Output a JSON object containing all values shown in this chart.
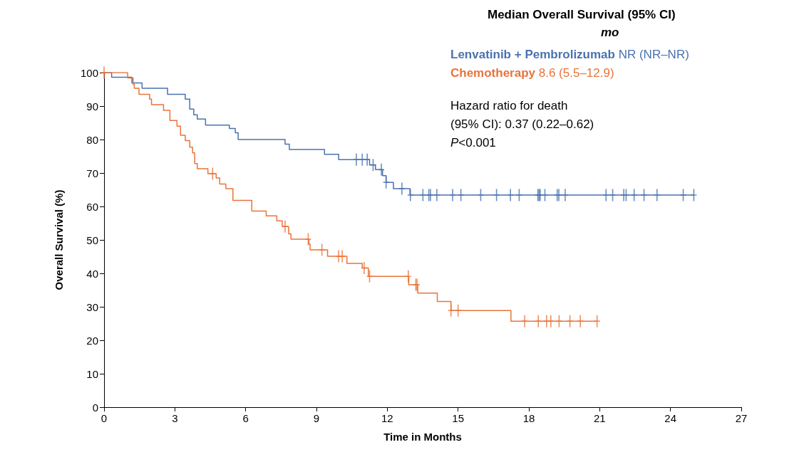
{
  "chart_data": {
    "type": "step",
    "xlabel": "Time in Months",
    "ylabel": "Overall Survival (%)",
    "legend_title": "Median Overall Survival (95% CI)",
    "annotations": [
      "mo",
      "NR (NR–NR)",
      "8.6 (5.5–12.9)",
      "Hazard ratio for death",
      "(95% CI): 0.37 (0.22–0.62)",
      "P<0.001"
    ],
    "xlim": [
      0,
      27
    ],
    "xticks": [
      0,
      3,
      6,
      9,
      12,
      15,
      18,
      21,
      24,
      27
    ],
    "ylim": [
      0,
      100
    ],
    "yticks": [
      0,
      10,
      20,
      30,
      40,
      50,
      60,
      70,
      80,
      90,
      100
    ],
    "grid": false,
    "legend": "top right",
    "series": [
      {
        "name": "Lenvatinib + Pembrolizumab",
        "color": "#4a72b0",
        "marker": "none",
        "x": [
          0,
          0.32,
          1.18,
          1.61,
          2.69,
          3.44,
          3.63,
          3.8,
          3.95,
          4.3,
          5.31,
          5.56,
          5.68,
          7.67,
          7.85,
          9.34,
          9.94,
          11.25,
          11.5,
          11.8,
          11.95,
          12.26,
          12.96,
          25.0
        ],
        "values": [
          100,
          98.6,
          96.9,
          95.3,
          93.5,
          92.1,
          89.1,
          87.4,
          86.1,
          84.3,
          83.3,
          82.0,
          80.0,
          78.6,
          77.0,
          75.6,
          74.0,
          72.4,
          71.0,
          69.2,
          67.2,
          65.3,
          63.4,
          63.4
        ]
      },
      {
        "name": "Chemotherapy",
        "color": "#e8743b",
        "marker": "none",
        "x": [
          0,
          1.0,
          1.23,
          1.28,
          1.48,
          1.93,
          2.01,
          2.52,
          2.79,
          3.09,
          3.24,
          3.44,
          3.63,
          3.75,
          3.84,
          3.95,
          4.4,
          4.75,
          4.9,
          5.16,
          5.46,
          6.26,
          6.87,
          7.32,
          7.55,
          7.82,
          7.92,
          8.68,
          8.73,
          9.47,
          10.29,
          10.94,
          11.2,
          12.91,
          13.29,
          14.12,
          14.7,
          17.24,
          20.89
        ],
        "values": [
          100,
          98.4,
          96.5,
          95.3,
          93.5,
          92.1,
          90.4,
          88.7,
          85.7,
          84.0,
          81.3,
          79.7,
          77.7,
          76.0,
          72.8,
          71.3,
          69.8,
          68.5,
          66.7,
          65.3,
          61.8,
          58.6,
          57.2,
          55.7,
          54.0,
          51.8,
          50.2,
          48.7,
          47.0,
          45.1,
          43.0,
          41.6,
          39.1,
          36.6,
          34.1,
          31.6,
          28.9,
          25.7,
          25.7
        ]
      },
      {
        "type": "scatter",
        "color": "#4a72b0",
        "marker": "cross",
        "x": [
          10.69,
          10.94,
          11.15,
          11.4,
          11.75,
          11.95,
          12.62,
          12.98,
          13.51,
          13.76,
          13.83,
          14.1,
          14.77,
          15.12,
          15.96,
          16.63,
          17.22,
          17.59,
          18.38,
          18.43,
          18.48,
          18.68,
          19.2,
          19.27,
          19.54,
          21.27,
          21.55,
          22.02,
          22.12,
          22.46,
          22.88,
          23.43,
          24.54,
          24.99
        ],
        "values": [
          74.0,
          74.0,
          74.0,
          72.4,
          71.0,
          67.2,
          65.3,
          63.4,
          63.4,
          63.4,
          63.4,
          63.4,
          63.4,
          63.4,
          63.4,
          63.4,
          63.4,
          63.4,
          63.4,
          63.4,
          63.4,
          63.4,
          63.4,
          63.4,
          63.4,
          63.4,
          63.4,
          63.4,
          63.4,
          63.4,
          63.4,
          63.4,
          63.4,
          63.4
        ]
      },
      {
        "type": "scatter",
        "color": "#e8743b",
        "marker": "cross",
        "x": [
          0,
          4.6,
          7.67,
          8.65,
          9.23,
          9.94,
          10.09,
          11.02,
          11.25,
          12.89,
          13.21,
          13.26,
          14.7,
          15.0,
          17.82,
          18.4,
          18.75,
          18.93,
          19.28,
          19.74,
          20.18,
          20.89
        ],
        "values": [
          100,
          69.8,
          54.0,
          50.2,
          47.0,
          45.1,
          45.1,
          41.6,
          39.1,
          39.1,
          36.6,
          36.6,
          28.9,
          28.9,
          25.7,
          25.7,
          25.7,
          25.7,
          25.7,
          25.7,
          25.7,
          25.7
        ]
      }
    ]
  }
}
